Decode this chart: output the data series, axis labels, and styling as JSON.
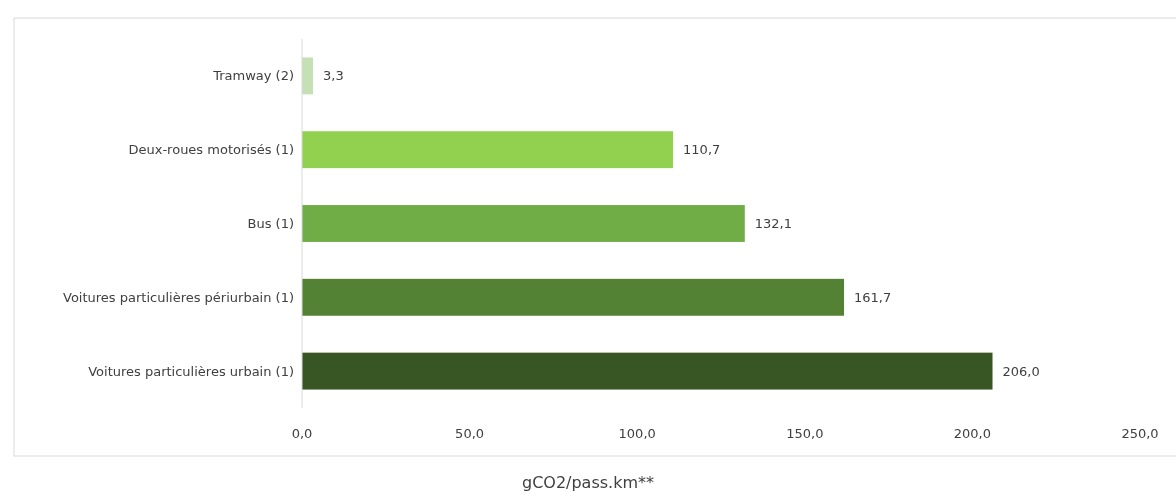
{
  "chart_data": {
    "type": "bar",
    "orientation": "horizontal",
    "xlabel": "gCO2/pass.km**",
    "categories": [
      "Tramway (2)",
      "Deux-roues motorisés (1)",
      "Bus (1)",
      "Voitures particulières périurbain (1)",
      "Voitures particulières urbain (1)"
    ],
    "values": [
      3.3,
      110.7,
      132.1,
      161.7,
      206.0
    ],
    "colors": [
      "#c5e0b4",
      "#92d050",
      "#70ad47",
      "#548235",
      "#375623"
    ],
    "value_labels": [
      "3,3",
      "110,7",
      "132,1",
      "161,7",
      "206,0"
    ],
    "xlim": [
      0,
      250
    ],
    "xticks": [
      {
        "value": 0,
        "label": "0,0"
      },
      {
        "value": 50,
        "label": "50,0"
      },
      {
        "value": 100,
        "label": "100,0"
      },
      {
        "value": 150,
        "label": "150,0"
      },
      {
        "value": 200,
        "label": "200,0"
      },
      {
        "value": 250,
        "label": "250,0"
      }
    ],
    "grid": false
  }
}
